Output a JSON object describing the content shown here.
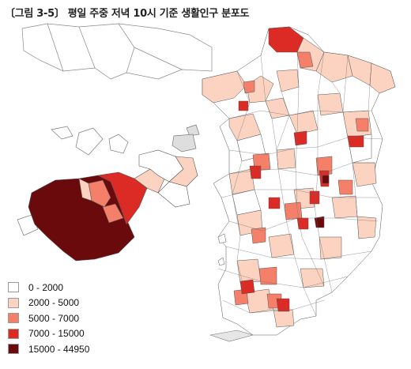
{
  "title": "〔그림 3-5〕 평일 주중 저녁 10시 기준 생활인구 분포도",
  "legend": {
    "items": [
      {
        "label": "0 - 2000",
        "color": "#ffffff"
      },
      {
        "label": "2000 - 5000",
        "color": "#fcd3c1"
      },
      {
        "label": "5000 - 7000",
        "color": "#f4806a"
      },
      {
        "label": "7000 - 15000",
        "color": "#dc2a25"
      },
      {
        "label": "15000 - 44950",
        "color": "#6b0a0d"
      }
    ]
  },
  "colors": {
    "background_region": "#ffffff",
    "boundary": "#555555"
  }
}
